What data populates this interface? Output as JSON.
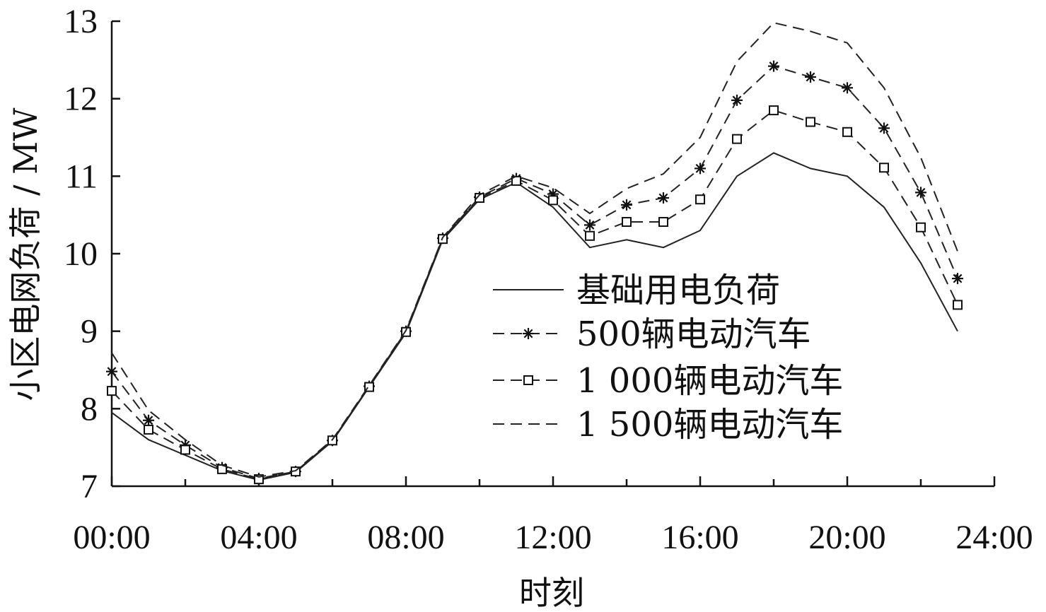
{
  "chart_data": {
    "type": "line",
    "xlabel": "时刻",
    "ylabel": "小区电网负荷 / MW",
    "x_ticks": [
      "00:00",
      "04:00",
      "08:00",
      "12:00",
      "16:00",
      "20:00",
      "24:00"
    ],
    "y_ticks": [
      "7",
      "8",
      "9",
      "10",
      "11",
      "12",
      "13"
    ],
    "xlim": [
      0,
      24
    ],
    "ylim": [
      7,
      13
    ],
    "legend_position": "center-right",
    "x": [
      0,
      1,
      2,
      3,
      4,
      5,
      6,
      7,
      8,
      9,
      10,
      11,
      12,
      13,
      14,
      15,
      16,
      17,
      18,
      19,
      20,
      21,
      22,
      23
    ],
    "series": [
      {
        "name": "基础用电负荷",
        "style": "solid",
        "marker": "none",
        "values": [
          7.95,
          7.6,
          7.4,
          7.2,
          7.08,
          7.18,
          7.58,
          8.28,
          8.98,
          10.18,
          10.7,
          10.92,
          10.6,
          10.08,
          10.18,
          10.08,
          10.3,
          11.0,
          11.3,
          11.1,
          11.0,
          10.6,
          9.88,
          9.0
        ]
      },
      {
        "name": "500辆电动汽车",
        "style": "dashed",
        "marker": "star",
        "values": [
          8.48,
          7.85,
          7.53,
          7.24,
          7.1,
          7.19,
          7.59,
          8.29,
          9.0,
          10.2,
          10.73,
          10.97,
          10.77,
          10.37,
          10.63,
          10.72,
          11.1,
          11.98,
          12.42,
          12.28,
          12.14,
          11.62,
          10.79,
          9.68
        ]
      },
      {
        "name": "1 000辆电动汽车",
        "style": "dashed",
        "marker": "square",
        "values": [
          8.23,
          7.73,
          7.47,
          7.22,
          7.09,
          7.19,
          7.59,
          8.28,
          8.99,
          10.19,
          10.72,
          10.94,
          10.69,
          10.23,
          10.41,
          10.41,
          10.7,
          11.48,
          11.85,
          11.7,
          11.57,
          11.11,
          10.34,
          9.34
        ]
      },
      {
        "name": "1 500辆电动汽车",
        "style": "dashed",
        "marker": "none",
        "values": [
          8.72,
          7.98,
          7.6,
          7.27,
          7.12,
          7.2,
          7.6,
          8.3,
          9.01,
          10.21,
          10.76,
          11.0,
          10.85,
          10.52,
          10.84,
          11.03,
          11.5,
          12.48,
          12.98,
          12.87,
          12.72,
          12.14,
          11.24,
          10.03
        ]
      }
    ]
  }
}
